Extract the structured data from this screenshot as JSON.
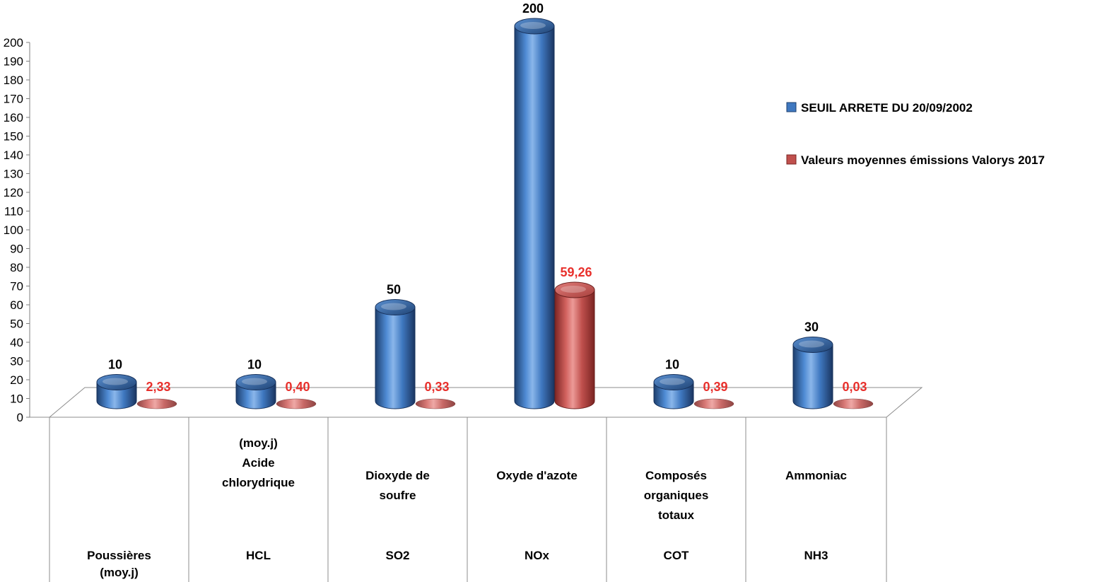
{
  "chart_data": {
    "type": "bar",
    "categories": [
      {
        "lines_top": [],
        "lines_code": [
          "Poussières",
          "(moy.j)"
        ]
      },
      {
        "lines_top": [
          "(moy.j)",
          "Acide",
          "chlorydrique"
        ],
        "lines_code": [
          "HCL"
        ]
      },
      {
        "lines_top": [
          "Dioxyde de",
          "soufre"
        ],
        "lines_code": [
          "SO2"
        ]
      },
      {
        "lines_top": [
          "Oxyde d'azote"
        ],
        "lines_code": [
          "NOx"
        ]
      },
      {
        "lines_top": [
          "Composés",
          "organiques",
          "totaux"
        ],
        "lines_code": [
          "COT"
        ]
      },
      {
        "lines_top": [
          "Ammoniac"
        ],
        "lines_code": [
          "NH3"
        ]
      }
    ],
    "series": [
      {
        "name": "SEUIL ARRETE DU 20/09/2002",
        "color": "#3f78c0",
        "values": [
          10,
          10,
          50,
          200,
          10,
          30
        ],
        "labels": [
          "10",
          "10",
          "50",
          "200",
          "10",
          "30"
        ]
      },
      {
        "name": "Valeurs moyennes émissions Valorys 2017",
        "color": "#c0504d",
        "values": [
          2.33,
          0.4,
          0.33,
          59.26,
          0.39,
          0.03
        ],
        "labels": [
          "2,33",
          "0,40",
          "0,33",
          "59,26",
          "0,39",
          "0,03"
        ]
      }
    ],
    "ylim": [
      0,
      200
    ],
    "yticks": [
      0,
      10,
      20,
      30,
      40,
      50,
      60,
      70,
      80,
      90,
      100,
      110,
      120,
      130,
      140,
      150,
      160,
      170,
      180,
      190,
      200
    ],
    "legend_position": "right",
    "label_color_red": "#e8302c"
  }
}
